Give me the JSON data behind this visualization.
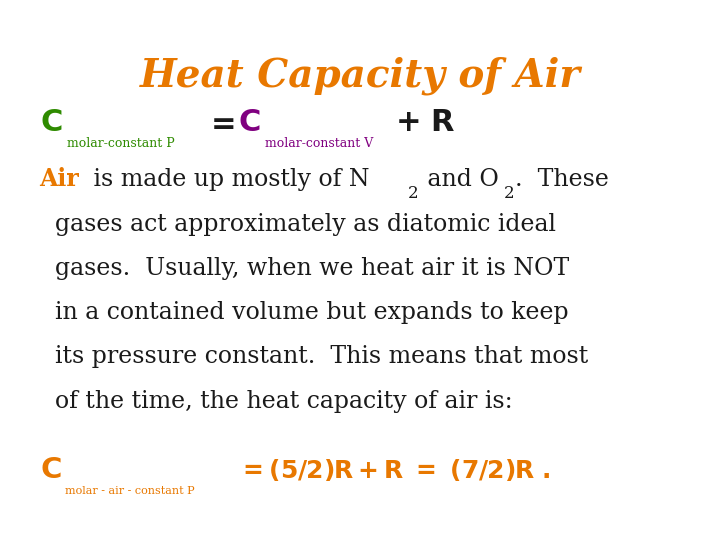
{
  "title": "Heat Capacity of Air",
  "title_color": "#E87800",
  "title_fontsize": 28,
  "bg_color": "#FFFFFF",
  "green_color": "#2E8B00",
  "purple_color": "#800080",
  "orange_color": "#E87800",
  "black_color": "#1A1A1A",
  "body_fontsize": 17,
  "sub_fontsize": 10,
  "eq_fontsize": 22,
  "eq_sub_fontsize": 9,
  "last_C_fontsize": 21,
  "last_sub_fontsize": 8,
  "last_eq_fontsize": 18
}
